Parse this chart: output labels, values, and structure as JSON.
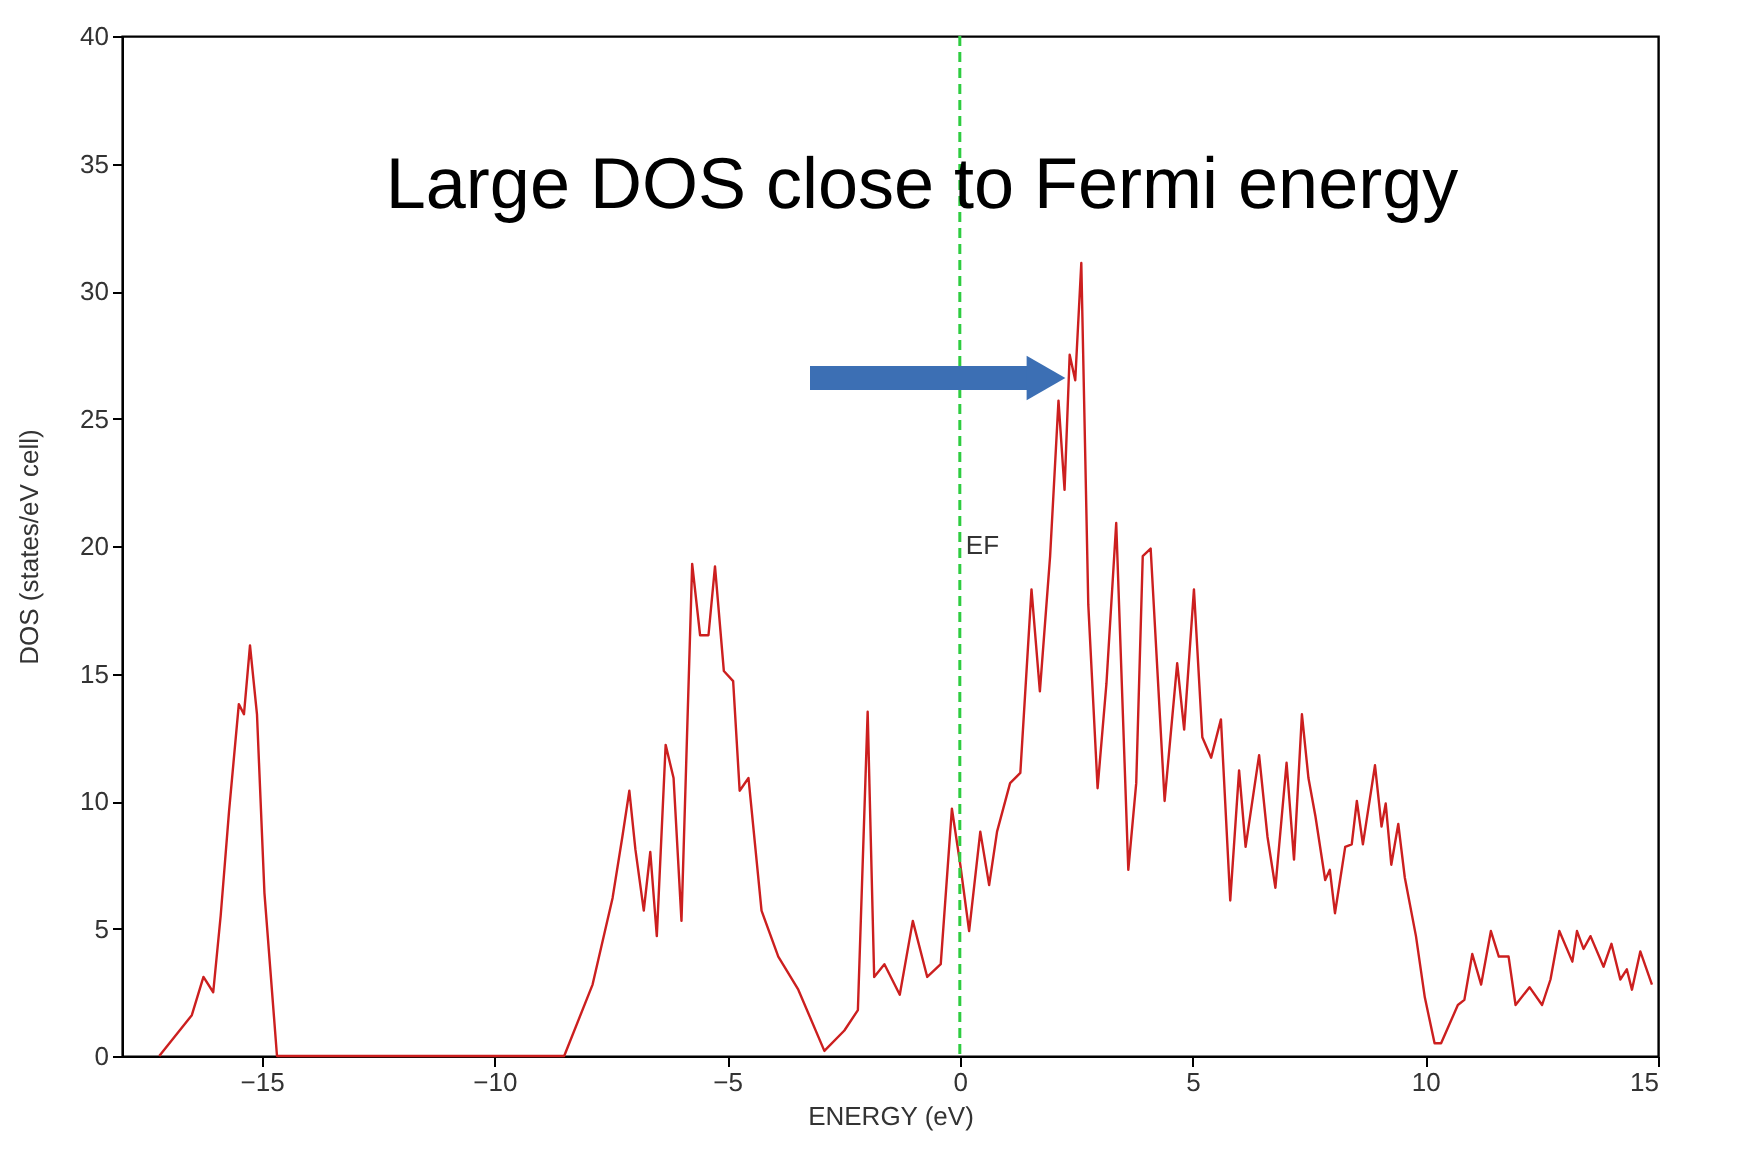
{
  "chart_data": {
    "type": "line",
    "xlabel": "ENERGY (eV)",
    "ylabel": "DOS (states/eV cell)",
    "xlim": [
      -18,
      15
    ],
    "xticks": [
      -15,
      -10,
      -5,
      0,
      5,
      10,
      15
    ],
    "ylim": [
      0,
      40
    ],
    "yticks": [
      0,
      5,
      10,
      15,
      20,
      25,
      30,
      35,
      40
    ],
    "grid": false,
    "marker": "none",
    "line_style": "solid",
    "annotations": [
      "Large DOS close to Fermi energy"
    ],
    "ref_lines": [
      {
        "axis": "x",
        "value": 0,
        "label": "EF",
        "color": "#2ecc40",
        "line_style": "dashed"
      }
    ],
    "series": [
      {
        "color": "#cc1f1f",
        "x": [
          -17.2,
          -16.5,
          -16.25,
          -16.04,
          -15.88,
          -15.7,
          -15.49,
          -15.38,
          -15.25,
          -15.1,
          -14.94,
          -14.67,
          -8.5,
          -7.89,
          -7.46,
          -7.25,
          -7.1,
          -6.97,
          -6.79,
          -6.65,
          -6.51,
          -6.32,
          -6.15,
          -5.98,
          -5.75,
          -5.58,
          -5.4,
          -5.26,
          -5.07,
          -4.87,
          -4.73,
          -4.54,
          -4.26,
          -3.9,
          -3.47,
          -2.91,
          -2.48,
          -2.19,
          -1.98,
          -1.84,
          -1.62,
          -1.29,
          -1.01,
          -0.7,
          -0.41,
          -0.17,
          0.01,
          0.2,
          0.44,
          0.63,
          0.8,
          1.08,
          1.3,
          1.54,
          1.72,
          1.94,
          2.12,
          2.25,
          2.36,
          2.48,
          2.61,
          2.76,
          2.96,
          3.15,
          3.36,
          3.62,
          3.79,
          3.93,
          4.1,
          4.4,
          4.67,
          4.82,
          5.03,
          5.21,
          5.4,
          5.61,
          5.81,
          6.0,
          6.14,
          6.43,
          6.61,
          6.78,
          7.02,
          7.18,
          7.35,
          7.49,
          7.64,
          7.85,
          7.95,
          8.06,
          8.28,
          8.42,
          8.53,
          8.66,
          8.92,
          9.06,
          9.15,
          9.27,
          9.42,
          9.56,
          9.8,
          9.99,
          10.2,
          10.34,
          10.7,
          10.84,
          11.01,
          11.2,
          11.41,
          11.58,
          11.79,
          11.94,
          12.24,
          12.51,
          12.69,
          12.88,
          13.16,
          13.26,
          13.4,
          13.55,
          13.83,
          14.0,
          14.19,
          14.33,
          14.44,
          14.62,
          14.87
        ],
        "values": [
          0,
          1.6,
          3.1,
          2.5,
          5.5,
          9.6,
          13.8,
          13.4,
          16.1,
          13.4,
          6.4,
          0,
          0,
          2.8,
          6.2,
          8.6,
          10.4,
          8.1,
          5.7,
          8.0,
          4.7,
          12.2,
          10.9,
          5.3,
          19.3,
          16.5,
          16.5,
          19.2,
          15.1,
          14.7,
          10.4,
          10.9,
          5.7,
          3.9,
          2.6,
          0.2,
          1.0,
          1.8,
          13.5,
          3.1,
          3.6,
          2.4,
          5.3,
          3.1,
          3.6,
          9.7,
          7.5,
          4.9,
          8.8,
          6.7,
          8.8,
          10.7,
          11.1,
          18.3,
          14.3,
          19.6,
          25.7,
          22.2,
          27.5,
          26.5,
          31.1,
          17.7,
          10.5,
          14.6,
          20.9,
          7.3,
          10.7,
          19.6,
          19.9,
          10.0,
          15.4,
          12.8,
          18.3,
          12.5,
          11.7,
          13.2,
          6.1,
          11.2,
          8.2,
          11.8,
          8.6,
          6.6,
          11.5,
          7.7,
          13.4,
          10.9,
          9.4,
          6.9,
          7.3,
          5.6,
          8.2,
          8.3,
          10.0,
          8.3,
          11.4,
          9.0,
          9.9,
          7.5,
          9.1,
          7.0,
          4.7,
          2.3,
          0.5,
          0.5,
          2.0,
          2.2,
          4.0,
          2.8,
          4.9,
          3.9,
          3.9,
          2.0,
          2.7,
          2.0,
          3.0,
          4.9,
          3.7,
          4.9,
          4.2,
          4.7,
          3.5,
          4.4,
          3.0,
          3.4,
          2.6,
          4.1,
          2.8
        ]
      }
    ]
  }
}
